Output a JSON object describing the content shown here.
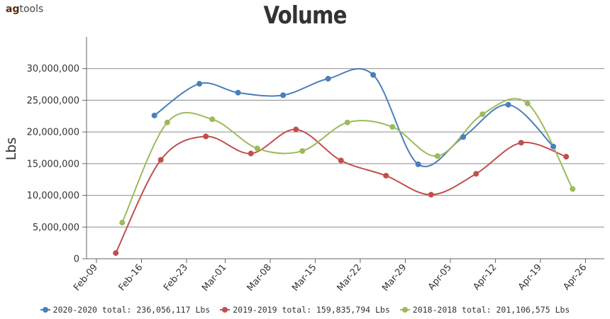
{
  "logo": {
    "part1": "ag",
    "part2": "tools"
  },
  "chart_data": {
    "type": "line",
    "title": "Volume",
    "ylabel": "Lbs",
    "xlabel": "",
    "ylim": [
      0,
      35000000
    ],
    "y_ticks": [
      0,
      5000000,
      10000000,
      15000000,
      20000000,
      25000000,
      30000000
    ],
    "y_tick_labels": [
      "0",
      "5,000,000",
      "10,000,000",
      "15,000,000",
      "20,000,000",
      "25,000,000",
      "30,000,000"
    ],
    "x_ticks": [
      "Feb-09",
      "Feb-16",
      "Feb-23",
      "Mar-01",
      "Mar-08",
      "Mar-15",
      "Mar-22",
      "Mar-29",
      "Apr-05",
      "Apr-12",
      "Apr-19",
      "Apr-26"
    ],
    "grid": true,
    "legend_position": "bottom",
    "series": [
      {
        "name": "2020-2020 total: 236,056,117 Lbs",
        "color": "#4a7ebb",
        "points": [
          [
            "Feb-18",
            22600000
          ],
          [
            "Feb-25",
            27600000
          ],
          [
            "Mar-03",
            26200000
          ],
          [
            "Mar-10",
            25800000
          ],
          [
            "Mar-17",
            28400000
          ],
          [
            "Mar-24",
            29000000
          ],
          [
            "Mar-31",
            14900000
          ],
          [
            "Apr-07",
            19200000
          ],
          [
            "Apr-14",
            24300000
          ],
          [
            "Apr-21",
            17700000
          ]
        ]
      },
      {
        "name": "2019-2019 total: 159,835,794 Lbs",
        "color": "#c0504d",
        "points": [
          [
            "Feb-12",
            900000
          ],
          [
            "Feb-19",
            15600000
          ],
          [
            "Feb-26",
            19300000
          ],
          [
            "Mar-05",
            16600000
          ],
          [
            "Mar-12",
            20400000
          ],
          [
            "Mar-19",
            15500000
          ],
          [
            "Mar-26",
            13100000
          ],
          [
            "Apr-02",
            10100000
          ],
          [
            "Apr-09",
            13400000
          ],
          [
            "Apr-16",
            18300000
          ],
          [
            "Apr-23",
            16100000
          ]
        ]
      },
      {
        "name": "2018-2018 total: 201,106,575 Lbs",
        "color": "#9bbb59",
        "points": [
          [
            "Feb-13",
            5700000
          ],
          [
            "Feb-20",
            21500000
          ],
          [
            "Feb-27",
            22000000
          ],
          [
            "Mar-06",
            17400000
          ],
          [
            "Mar-13",
            17000000
          ],
          [
            "Mar-20",
            21500000
          ],
          [
            "Mar-27",
            20800000
          ],
          [
            "Apr-03",
            16200000
          ],
          [
            "Apr-10",
            22800000
          ],
          [
            "Apr-17",
            24500000
          ],
          [
            "Apr-24",
            11000000
          ]
        ]
      }
    ]
  }
}
